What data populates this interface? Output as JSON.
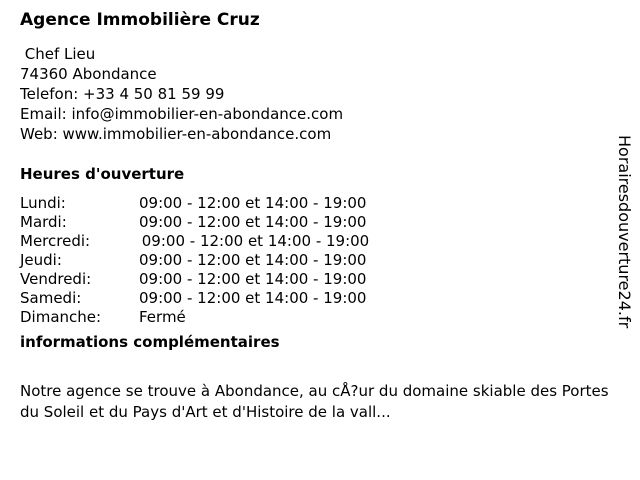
{
  "agency": {
    "name": "Agence Immobilière Cruz",
    "address_line1": " Chef Lieu",
    "address_line2": "74360 Abondance",
    "phone": "Telefon: +33 4 50 81 59 99",
    "email": "Email: info@immobilier-en-abondance.com",
    "web": "Web: www.immobilier-en-abondance.com"
  },
  "hours": {
    "heading": "Heures d'ouverture",
    "days": [
      {
        "day": "Lundi:",
        "time": "09:00 - 12:00 et 14:00 - 19:00"
      },
      {
        "day": "Mardi:",
        "time": "09:00 - 12:00 et 14:00 - 19:00"
      },
      {
        "day": "Mercredi:",
        "time": " 09:00 - 12:00 et 14:00 - 19:00"
      },
      {
        "day": "Jeudi:",
        "time": "09:00 - 12:00 et 14:00 - 19:00"
      },
      {
        "day": "Vendredi:",
        "time": "09:00 - 12:00 et 14:00 - 19:00"
      },
      {
        "day": "Samedi:",
        "time": "09:00 - 12:00 et 14:00 - 19:00"
      },
      {
        "day": "Dimanche:",
        "time": "Fermé"
      }
    ]
  },
  "info": {
    "heading": "informations complémentaires",
    "text": "Notre agence se trouve à Abondance, au cÅ?ur du domaine skiable des Portes du Soleil et du Pays d'Art et d'Histoire de la vall..."
  },
  "watermark": "Horairesdouverture24.fr"
}
